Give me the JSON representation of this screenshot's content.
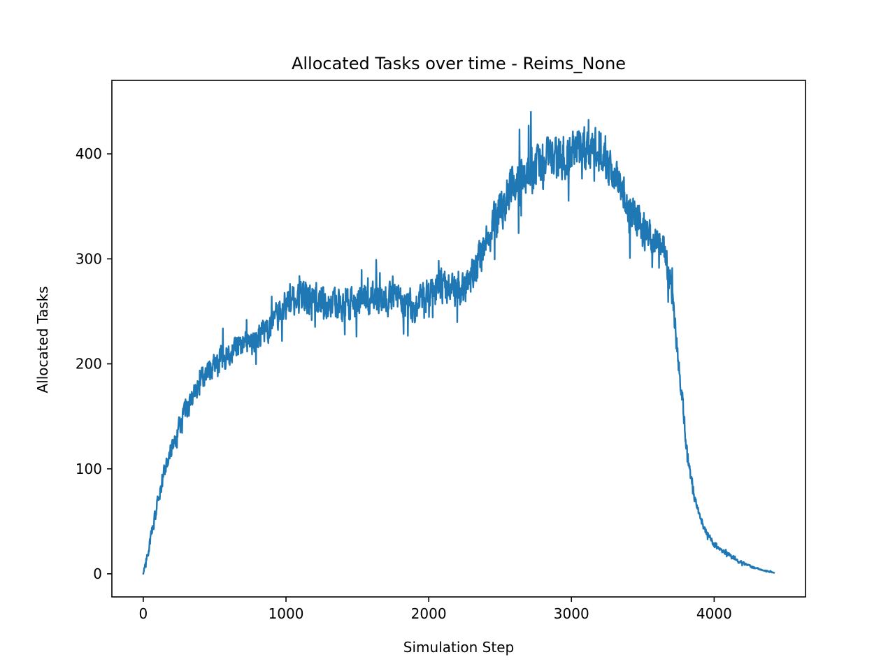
{
  "chart_data": {
    "type": "line",
    "title": "Allocated Tasks over time - Reims_None",
    "xlabel": "Simulation Step",
    "ylabel": "Allocated Tasks",
    "xlim": [
      -220,
      4640
    ],
    "ylim": [
      -22,
      470
    ],
    "grid": false,
    "legend": "none",
    "x_ticks": [
      0,
      1000,
      2000,
      3000,
      4000
    ],
    "y_ticks": [
      0,
      100,
      200,
      300,
      400
    ],
    "x_tick_labels": [
      "0",
      "1000",
      "2000",
      "3000",
      "4000"
    ],
    "y_tick_labels": [
      "0",
      "100",
      "200",
      "300",
      "400"
    ],
    "series": [
      {
        "color": "#1f77b4",
        "x": [
          0,
          25,
          50,
          75,
          100,
          125,
          150,
          175,
          200,
          250,
          300,
          350,
          400,
          450,
          500,
          550,
          600,
          650,
          700,
          750,
          800,
          850,
          900,
          950,
          1000,
          1050,
          1100,
          1150,
          1200,
          1250,
          1300,
          1350,
          1400,
          1450,
          1500,
          1550,
          1600,
          1650,
          1700,
          1750,
          1800,
          1850,
          1900,
          1950,
          2000,
          2050,
          2100,
          2150,
          2200,
          2250,
          2300,
          2350,
          2400,
          2450,
          2500,
          2550,
          2600,
          2650,
          2700,
          2750,
          2800,
          2850,
          2900,
          2950,
          3000,
          3050,
          3100,
          3150,
          3200,
          3250,
          3300,
          3350,
          3400,
          3450,
          3500,
          3550,
          3600,
          3650,
          3700,
          3725,
          3750,
          3775,
          3800,
          3825,
          3850,
          3875,
          3900,
          3950,
          4000,
          4050,
          4100,
          4150,
          4200,
          4250,
          4300,
          4350,
          4400,
          4420
        ],
        "values": [
          0,
          15,
          32,
          50,
          68,
          84,
          98,
          110,
          120,
          140,
          155,
          170,
          183,
          193,
          200,
          205,
          210,
          213,
          217,
          221,
          225,
          230,
          238,
          248,
          258,
          263,
          265,
          263,
          260,
          258,
          257,
          256,
          255,
          256,
          258,
          260,
          262,
          263,
          263,
          261,
          258,
          256,
          255,
          260,
          266,
          270,
          272,
          270,
          270,
          275,
          284,
          300,
          318,
          332,
          345,
          360,
          370,
          378,
          382,
          386,
          390,
          393,
          396,
          398,
          402,
          405,
          408,
          406,
          400,
          390,
          378,
          365,
          352,
          340,
          330,
          322,
          315,
          310,
          270,
          240,
          200,
          170,
          130,
          100,
          80,
          65,
          52,
          38,
          28,
          22,
          18,
          14,
          10,
          7,
          5,
          3,
          2,
          1
        ],
        "noise_amplitude": [
          0,
          5,
          7,
          8,
          9,
          10,
          10,
          11,
          12,
          13,
          14,
          15,
          16,
          17,
          18,
          18,
          18,
          18,
          18,
          18,
          18,
          18,
          19,
          20,
          22,
          22,
          22,
          22,
          21,
          21,
          21,
          21,
          21,
          21,
          21,
          21,
          21,
          21,
          21,
          21,
          21,
          21,
          21,
          21,
          22,
          22,
          22,
          22,
          22,
          23,
          24,
          25,
          26,
          26,
          26,
          27,
          27,
          27,
          27,
          27,
          27,
          27,
          28,
          28,
          28,
          28,
          28,
          28,
          27,
          26,
          25,
          24,
          23,
          22,
          21,
          20,
          20,
          20,
          18,
          16,
          14,
          12,
          10,
          8,
          7,
          6,
          5,
          4,
          4,
          3,
          3,
          3,
          2,
          2,
          1,
          1,
          1,
          0
        ]
      }
    ]
  }
}
